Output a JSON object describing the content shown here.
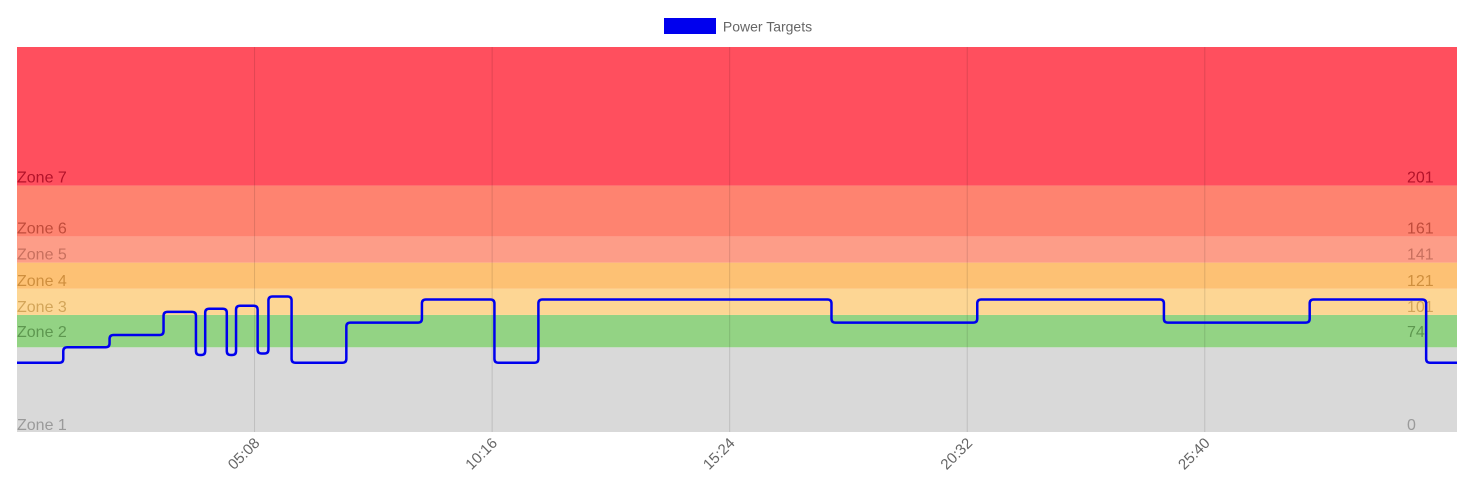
{
  "chart_data": {
    "type": "line",
    "title": "",
    "xlabel": "",
    "ylabel": "",
    "legend": {
      "position": "top",
      "series_name": "Power Targets",
      "color": "#0000ee"
    },
    "x_range_seconds": [
      0,
      1867
    ],
    "y_range": [
      0,
      250
    ],
    "x_ticks": [
      {
        "label": "05:08",
        "seconds": 308
      },
      {
        "label": "10:16",
        "seconds": 616
      },
      {
        "label": "15:24",
        "seconds": 924
      },
      {
        "label": "20:32",
        "seconds": 1232
      },
      {
        "label": "25:40",
        "seconds": 1540
      }
    ],
    "grid": true,
    "zones": [
      {
        "name": "Zone 1",
        "min": 0,
        "max": 55,
        "color": "#d9d9d9",
        "label_color": "#9a9a9a"
      },
      {
        "name": "Zone 2",
        "min": 74,
        "max": 74,
        "color": "#93d384",
        "label_color": "#5e9750",
        "band_min": 55
      },
      {
        "name": "Zone 3",
        "min": 101,
        "max": 101,
        "color": "#fdd694",
        "label_color": "#d3a559",
        "band_min": 76
      },
      {
        "name": "Zone 4",
        "min": 121,
        "max": 121,
        "color": "#fdc174",
        "label_color": "#cf8f3e",
        "band_min": 93
      },
      {
        "name": "Zone 5",
        "min": 141,
        "max": 141,
        "color": "#fd9d88",
        "label_color": "#c8705e",
        "band_min": 110
      },
      {
        "name": "Zone 6",
        "min": 161,
        "max": 161,
        "color": "#fe8370",
        "label_color": "#c04c3b",
        "band_min": 127
      },
      {
        "name": "Zone 7",
        "min": 201,
        "max": 201,
        "color": "#ff4f5e",
        "label_color": "#b3132a",
        "band_min": 160
      }
    ],
    "zone_labels_right": [
      "0",
      "74",
      "101",
      "121",
      "141",
      "161",
      "201"
    ],
    "series": [
      {
        "name": "Power Targets",
        "color": "#0000ee",
        "steps": [
          {
            "start": 0,
            "end": 60,
            "value": 45
          },
          {
            "start": 60,
            "end": 120,
            "value": 55
          },
          {
            "start": 120,
            "end": 190,
            "value": 63
          },
          {
            "start": 190,
            "end": 232,
            "value": 78
          },
          {
            "start": 232,
            "end": 244,
            "value": 50
          },
          {
            "start": 244,
            "end": 272,
            "value": 80
          },
          {
            "start": 272,
            "end": 284,
            "value": 50
          },
          {
            "start": 284,
            "end": 312,
            "value": 82
          },
          {
            "start": 312,
            "end": 326,
            "value": 51
          },
          {
            "start": 326,
            "end": 356,
            "value": 88
          },
          {
            "start": 356,
            "end": 427,
            "value": 45
          },
          {
            "start": 427,
            "end": 525,
            "value": 71
          },
          {
            "start": 525,
            "end": 619,
            "value": 86
          },
          {
            "start": 619,
            "end": 676,
            "value": 45
          },
          {
            "start": 676,
            "end": 1056,
            "value": 86
          },
          {
            "start": 1056,
            "end": 1245,
            "value": 71
          },
          {
            "start": 1245,
            "end": 1487,
            "value": 86
          },
          {
            "start": 1487,
            "end": 1676,
            "value": 71
          },
          {
            "start": 1676,
            "end": 1827,
            "value": 86
          },
          {
            "start": 1827,
            "end": 1867,
            "value": 45
          }
        ]
      }
    ]
  }
}
